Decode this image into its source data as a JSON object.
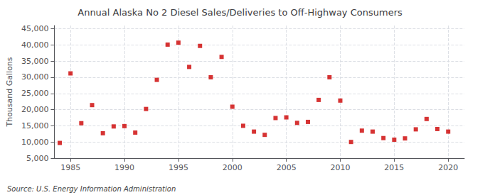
{
  "chart_data": {
    "type": "scatter",
    "title": "Annual Alaska No 2 Diesel Sales/Deliveries to Off-Highway Consumers",
    "ylabel": "Thousand Gallons",
    "source": "Source: U.S. Energy Information Administration",
    "x": [
      1984,
      1985,
      1986,
      1987,
      1988,
      1989,
      1990,
      1991,
      1992,
      1993,
      1994,
      1995,
      1996,
      1997,
      1998,
      1999,
      2000,
      2001,
      2002,
      2003,
      2004,
      2005,
      2006,
      2007,
      2008,
      2009,
      2010,
      2011,
      2012,
      2013,
      2014,
      2015,
      2016,
      2017,
      2018,
      2019,
      2020
    ],
    "values": [
      9700,
      31200,
      15800,
      21400,
      12700,
      14800,
      14900,
      12900,
      20200,
      29200,
      40100,
      40700,
      33200,
      39700,
      30000,
      36300,
      20900,
      15000,
      13200,
      12200,
      17400,
      17600,
      15900,
      16200,
      23000,
      30000,
      22800,
      10000,
      13500,
      13200,
      11200,
      10700,
      11100,
      13900,
      17100,
      14000,
      13200
    ],
    "color": "#cc0000",
    "marker": "square",
    "xlim": [
      1983.5,
      2021.5
    ],
    "ylim": [
      5000,
      46000
    ],
    "xticks": [
      1985,
      1990,
      1995,
      2000,
      2005,
      2010,
      2015,
      2020
    ],
    "yticks": [
      {
        "value": 5000,
        "label": "5,000"
      },
      {
        "value": 10000,
        "label": "10,000"
      },
      {
        "value": 15000,
        "label": "15,000"
      },
      {
        "value": 20000,
        "label": "20,000"
      },
      {
        "value": 25000,
        "label": "25,000"
      },
      {
        "value": 30000,
        "label": "30,000"
      },
      {
        "value": 35000,
        "label": "35,000"
      },
      {
        "value": 40000,
        "label": "40,000"
      },
      {
        "value": 45000,
        "label": "45,000"
      }
    ],
    "grid": true
  }
}
